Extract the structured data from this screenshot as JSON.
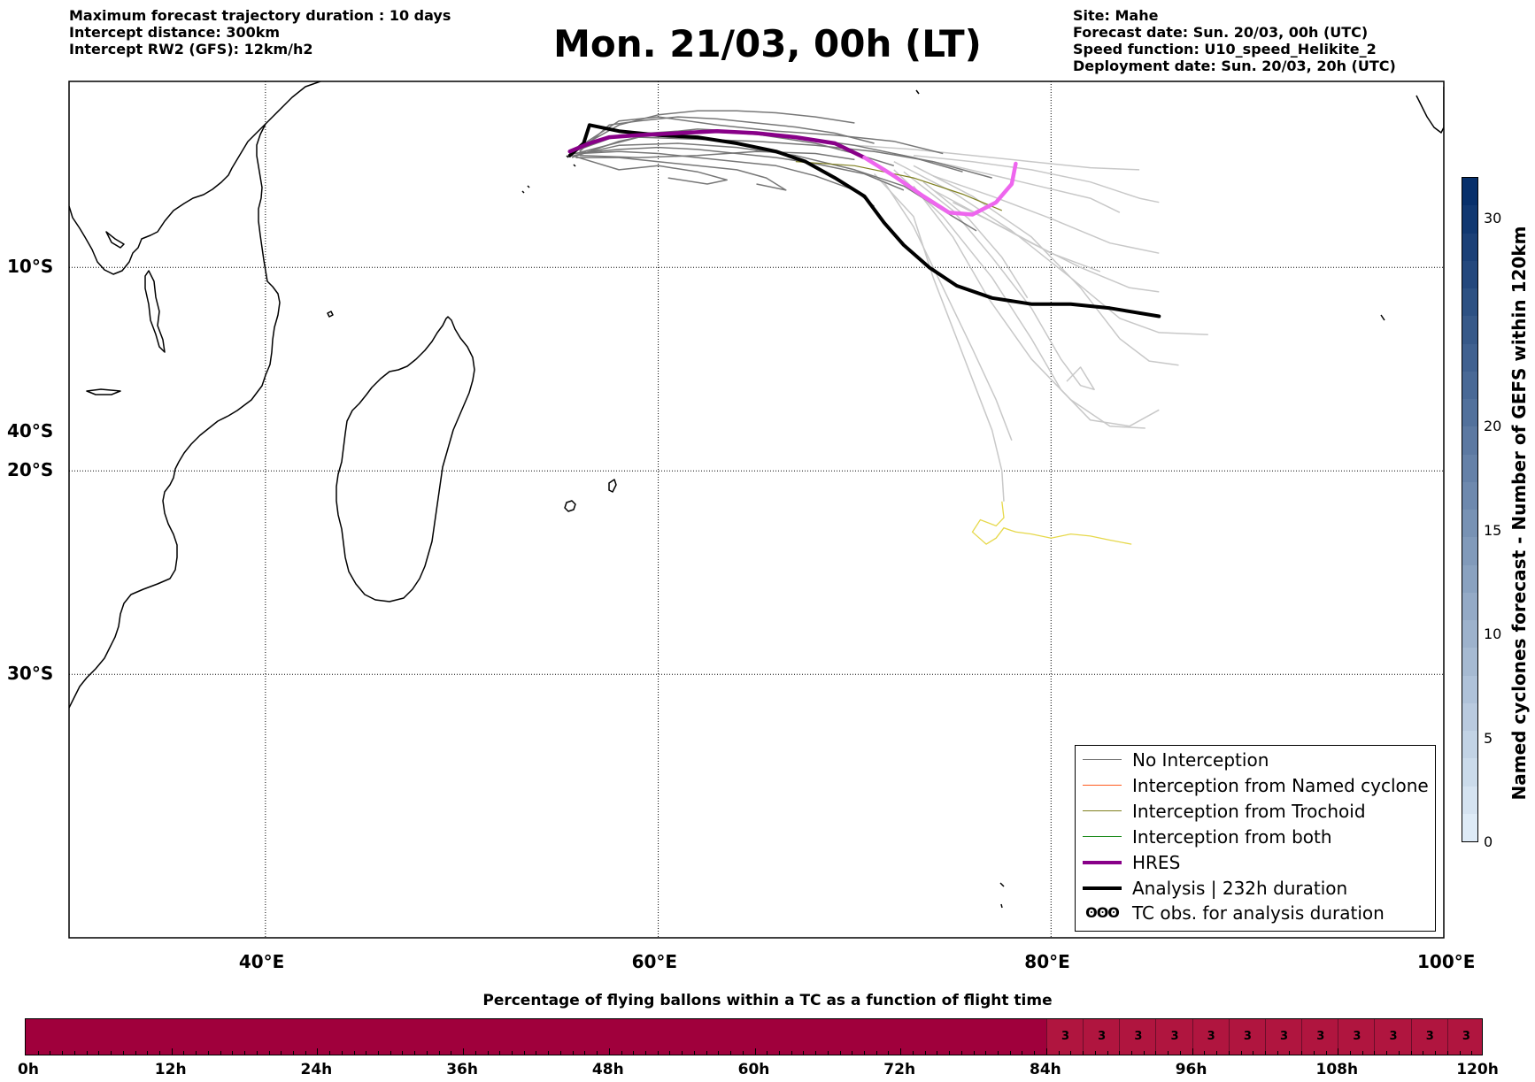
{
  "header": {
    "left": [
      "Maximum forecast trajectory duration : 10 days",
      "Intercept distance: 300km",
      "Intercept RW2 (GFS):  12km/h2"
    ],
    "title": "Mon. 21/03, 00h (LT)",
    "right": [
      "Site: Mahe",
      "Forecast date: Sun. 20/03, 00h (UTC)",
      "Speed function: U10_speed_Helikite_2",
      "Deployment date: Sun. 20/03, 20h (UTC)"
    ]
  },
  "map": {
    "lon_range": [
      30,
      100
    ],
    "lat_range": [
      -40,
      -0.3
    ],
    "lon_ticks": [
      {
        "v": 40,
        "label": "40°E"
      },
      {
        "v": 60,
        "label": "60°E"
      },
      {
        "v": 80,
        "label": "80°E"
      },
      {
        "v": 100,
        "label": "100°E"
      }
    ],
    "lat_ticks": [
      {
        "v": -10,
        "label": "10°S"
      },
      {
        "v": -20,
        "label": "20°S"
      },
      {
        "v": -30,
        "label": "30°S"
      },
      {
        "v": -40,
        "label": "40°S"
      }
    ],
    "colors": {
      "no_interception": "#777777",
      "ensemble_light": "#c8c8c8",
      "named_cyclone": "#ff5a1e",
      "trochoid": "#7f7f1e",
      "both": "#1e8c1e",
      "hres": "#880088",
      "hres_late": "#ee66ee",
      "analysis": "#000000",
      "yellow_track": "#e6d84a"
    },
    "tracks": {
      "analysis": [
        [
          55.5,
          -4.5
        ],
        [
          56.2,
          -3.9
        ],
        [
          56.5,
          -3.0
        ],
        [
          58,
          -3.3
        ],
        [
          60,
          -3.5
        ],
        [
          62,
          -3.6
        ],
        [
          64,
          -3.9
        ],
        [
          66,
          -4.3
        ],
        [
          67.5,
          -4.8
        ],
        [
          69,
          -5.6
        ],
        [
          70.5,
          -6.5
        ],
        [
          71.5,
          -7.8
        ],
        [
          72.5,
          -8.9
        ],
        [
          73.8,
          -10.0
        ],
        [
          75.2,
          -10.9
        ],
        [
          77,
          -11.5
        ],
        [
          79,
          -11.8
        ],
        [
          81,
          -11.8
        ],
        [
          83,
          -12.0
        ],
        [
          85.5,
          -12.4
        ]
      ],
      "hres": [
        [
          55.5,
          -4.3
        ],
        [
          56.5,
          -3.9
        ],
        [
          57.5,
          -3.6
        ],
        [
          59,
          -3.5
        ],
        [
          61,
          -3.4
        ],
        [
          63,
          -3.3
        ],
        [
          65,
          -3.4
        ],
        [
          67,
          -3.6
        ],
        [
          69,
          -3.9
        ],
        [
          70.5,
          -4.6
        ],
        [
          72,
          -5.5
        ],
        [
          73.5,
          -6.5
        ],
        [
          74.8,
          -7.3
        ],
        [
          76,
          -7.4
        ],
        [
          77.2,
          -6.8
        ],
        [
          78.0,
          -5.9
        ],
        [
          78.2,
          -4.9
        ]
      ],
      "hres_split_index": 9,
      "trochoid_segment": [
        [
          67,
          -4.8
        ],
        [
          70,
          -5.0
        ],
        [
          73,
          -5.6
        ],
        [
          75.5,
          -6.4
        ],
        [
          77.5,
          -7.2
        ]
      ],
      "yellow": [
        [
          77.5,
          -21.5
        ],
        [
          77.6,
          -22.3
        ],
        [
          77.2,
          -22.7
        ],
        [
          76.4,
          -22.4
        ],
        [
          76,
          -23.0
        ],
        [
          76.7,
          -23.6
        ],
        [
          77.2,
          -23.3
        ],
        [
          77.6,
          -22.8
        ],
        [
          78.2,
          -23.0
        ],
        [
          79,
          -23.1
        ],
        [
          80,
          -23.3
        ],
        [
          81,
          -23.1
        ],
        [
          82,
          -23.2
        ],
        [
          83,
          -23.4
        ],
        [
          84.1,
          -23.6
        ]
      ],
      "ens_dark": [
        [
          [
            55.6,
            -4.6
          ],
          [
            58,
            -3.8
          ],
          [
            60,
            -3.4
          ],
          [
            62,
            -3.2
          ],
          [
            64,
            -3.3
          ],
          [
            66,
            -3.6
          ],
          [
            68,
            -3.9
          ],
          [
            70,
            -4.4
          ],
          [
            72,
            -5.0
          ]
        ],
        [
          [
            55.7,
            -4.4
          ],
          [
            58,
            -4.2
          ],
          [
            60,
            -4.1
          ],
          [
            62,
            -4.2
          ],
          [
            64,
            -4.4
          ],
          [
            66,
            -4.6
          ],
          [
            68,
            -4.9
          ],
          [
            70.5,
            -5.4
          ],
          [
            72.5,
            -6.2
          ]
        ],
        [
          [
            55.8,
            -4.6
          ],
          [
            58,
            -4.6
          ],
          [
            60,
            -4.8
          ],
          [
            62,
            -5.0
          ],
          [
            64,
            -5.2
          ],
          [
            65.5,
            -5.6
          ],
          [
            66.5,
            -6.2
          ],
          [
            65,
            -5.9
          ]
        ],
        [
          [
            56.0,
            -4.3
          ],
          [
            57.5,
            -3.0
          ],
          [
            59,
            -2.8
          ],
          [
            61,
            -2.6
          ],
          [
            63,
            -2.7
          ],
          [
            65,
            -2.9
          ],
          [
            67,
            -3.1
          ],
          [
            69,
            -3.4
          ],
          [
            71,
            -3.9
          ]
        ],
        [
          [
            55.8,
            -4.2
          ],
          [
            58,
            -3.0
          ],
          [
            60,
            -2.5
          ],
          [
            62,
            -2.3
          ],
          [
            64,
            -2.3
          ],
          [
            66,
            -2.4
          ],
          [
            68,
            -2.6
          ],
          [
            70,
            -2.9
          ]
        ],
        [
          [
            55.6,
            -4.5
          ],
          [
            58,
            -5.2
          ],
          [
            60,
            -5.0
          ],
          [
            62,
            -5.3
          ],
          [
            63.5,
            -5.7
          ],
          [
            62.5,
            -5.9
          ],
          [
            60.5,
            -5.6
          ]
        ],
        [
          [
            55.7,
            -4.5
          ],
          [
            58,
            -4.0
          ],
          [
            61,
            -3.9
          ],
          [
            64,
            -4.1
          ],
          [
            67,
            -4.5
          ],
          [
            70,
            -5.2
          ],
          [
            72.5,
            -6.0
          ],
          [
            74.5,
            -7.2
          ],
          [
            76.2,
            -8.2
          ]
        ],
        [
          [
            55.7,
            -4.3
          ],
          [
            58,
            -3.5
          ],
          [
            61,
            -3.3
          ],
          [
            64,
            -3.4
          ],
          [
            67,
            -3.6
          ],
          [
            70,
            -4.0
          ],
          [
            73,
            -4.6
          ],
          [
            75.5,
            -5.3
          ]
        ],
        [
          [
            56,
            -4.4
          ],
          [
            58,
            -4.3
          ],
          [
            60,
            -4.4
          ],
          [
            62,
            -4.6
          ],
          [
            64,
            -4.8
          ],
          [
            66,
            -5.0
          ],
          [
            68,
            -5.5
          ],
          [
            70,
            -6.2
          ],
          [
            71,
            -7.0
          ]
        ],
        [
          [
            55.8,
            -4.4
          ],
          [
            59,
            -3.6
          ],
          [
            62,
            -3.7
          ],
          [
            65,
            -3.8
          ],
          [
            68,
            -4.0
          ],
          [
            71,
            -4.3
          ],
          [
            74,
            -4.8
          ],
          [
            77,
            -5.6
          ]
        ],
        [
          [
            56,
            -4.5
          ],
          [
            59,
            -4.6
          ],
          [
            62,
            -4.5
          ],
          [
            65,
            -4.3
          ],
          [
            68,
            -4.4
          ],
          [
            70,
            -4.7
          ]
        ],
        [
          [
            55.6,
            -4.3
          ],
          [
            58,
            -2.8
          ],
          [
            60,
            -2.6
          ],
          [
            63,
            -3.0
          ],
          [
            66,
            -3.3
          ],
          [
            69,
            -3.5
          ],
          [
            72,
            -3.8
          ],
          [
            74.5,
            -4.4
          ]
        ]
      ],
      "ens_light": [
        [
          [
            70,
            -4.0
          ],
          [
            73,
            -4.2
          ],
          [
            76,
            -4.5
          ],
          [
            79,
            -4.8
          ],
          [
            82,
            -5.1
          ],
          [
            84.5,
            -5.2
          ]
        ],
        [
          [
            71,
            -5.4
          ],
          [
            73,
            -7.5
          ],
          [
            74,
            -10.5
          ],
          [
            75,
            -13
          ],
          [
            76,
            -15.5
          ],
          [
            77,
            -18
          ],
          [
            77.5,
            -20
          ],
          [
            77.6,
            -21.5
          ]
        ],
        [
          [
            71.5,
            -5.8
          ],
          [
            73,
            -8
          ],
          [
            74.5,
            -11
          ],
          [
            76,
            -14
          ],
          [
            77.2,
            -16.5
          ],
          [
            78,
            -18.5
          ]
        ],
        [
          [
            72,
            -5.2
          ],
          [
            74.5,
            -7.5
          ],
          [
            77,
            -10.5
          ],
          [
            79,
            -13.5
          ],
          [
            80.5,
            -16
          ],
          [
            82,
            -17.5
          ],
          [
            84,
            -17.8
          ],
          [
            85.5,
            -17.0
          ]
        ],
        [
          [
            72,
            -4.8
          ],
          [
            75,
            -6.3
          ],
          [
            78,
            -8.2
          ],
          [
            81,
            -10.5
          ],
          [
            83.5,
            -12.5
          ],
          [
            85.5,
            -13.2
          ],
          [
            88,
            -13.3
          ]
        ],
        [
          [
            73,
            -5.0
          ],
          [
            76,
            -6.5
          ],
          [
            79,
            -8.5
          ],
          [
            81.5,
            -11
          ],
          [
            83.5,
            -13.5
          ],
          [
            85,
            -14.6
          ],
          [
            86.5,
            -14.8
          ]
        ],
        [
          [
            72.5,
            -5.3
          ],
          [
            75,
            -7.2
          ],
          [
            77,
            -9.5
          ],
          [
            79,
            -12
          ],
          [
            80.5,
            -14.5
          ],
          [
            81.5,
            -15.8
          ],
          [
            82.2,
            -16.0
          ],
          [
            81.5,
            -14.9
          ],
          [
            80.8,
            -15.6
          ]
        ],
        [
          [
            73,
            -4.5
          ],
          [
            76,
            -4.8
          ],
          [
            79,
            -5.2
          ],
          [
            82,
            -5.8
          ],
          [
            84.5,
            -6.6
          ],
          [
            85.5,
            -6.8
          ]
        ],
        [
          [
            74,
            -5.5
          ],
          [
            77,
            -6.5
          ],
          [
            80,
            -7.6
          ],
          [
            83,
            -8.8
          ],
          [
            85.5,
            -9.3
          ]
        ],
        [
          [
            74,
            -6.2
          ],
          [
            76.5,
            -7.5
          ],
          [
            79,
            -8.8
          ],
          [
            81.5,
            -10
          ],
          [
            84,
            -11
          ],
          [
            85.5,
            -11.2
          ]
        ],
        [
          [
            73.5,
            -5.8
          ],
          [
            75.8,
            -7.6
          ],
          [
            77.5,
            -9.5
          ],
          [
            78.8,
            -11.5
          ]
        ],
        [
          [
            72,
            -4.4
          ],
          [
            75,
            -5.0
          ],
          [
            78.5,
            -5.8
          ],
          [
            82,
            -6.6
          ],
          [
            83.5,
            -7.3
          ]
        ],
        [
          [
            73,
            -6.0
          ],
          [
            75,
            -8.5
          ],
          [
            76.8,
            -11.5
          ],
          [
            79,
            -14.5
          ],
          [
            81,
            -16.5
          ],
          [
            83,
            -17.8
          ],
          [
            84.8,
            -17.9
          ]
        ],
        [
          [
            75,
            -6.8
          ],
          [
            77.5,
            -8
          ],
          [
            80,
            -9.3
          ],
          [
            82.5,
            -10.2
          ]
        ]
      ]
    }
  },
  "colorbar_right": {
    "title": "Named cyclones forecast - Number of GEFS within 120km",
    "ticks": [
      {
        "v": 0,
        "label": "0"
      },
      {
        "v": 5,
        "label": "5"
      },
      {
        "v": 10,
        "label": "10"
      },
      {
        "v": 15,
        "label": "15"
      },
      {
        "v": 20,
        "label": "20"
      },
      {
        "v": 30,
        "label": "30"
      }
    ],
    "min": 0,
    "max": 32
  },
  "legend": {
    "items": [
      {
        "label": "No Interception",
        "color": "#777777",
        "width": 1.5
      },
      {
        "label": "Interception from Named cyclone",
        "color": "#ff5a1e",
        "width": 1.5
      },
      {
        "label": "Interception from Trochoid",
        "color": "#7f7f1e",
        "width": 1.5
      },
      {
        "label": "Interception from both",
        "color": "#1e8c1e",
        "width": 1.5
      },
      {
        "label": "HRES",
        "color": "#880088",
        "width": 4
      },
      {
        "label": "Analysis | 232h duration",
        "color": "#000000",
        "width": 4
      }
    ],
    "tc_obs_symbol": "ʘʘʘ",
    "tc_obs_label": "TC obs. for analysis duration"
  },
  "bottom": {
    "title": "Percentage of flying ballons within a TC as a function of flight time",
    "tick_labels": [
      "0h",
      "12h",
      "24h",
      "36h",
      "48h",
      "60h",
      "72h",
      "84h",
      "96h",
      "108h",
      "120h"
    ],
    "max_hours": 120,
    "cells_start_hour": 84,
    "cell_hours": 3,
    "cell_values": [
      "3",
      "3",
      "3",
      "3",
      "3",
      "3",
      "3",
      "3",
      "3",
      "3",
      "3",
      "3"
    ]
  }
}
